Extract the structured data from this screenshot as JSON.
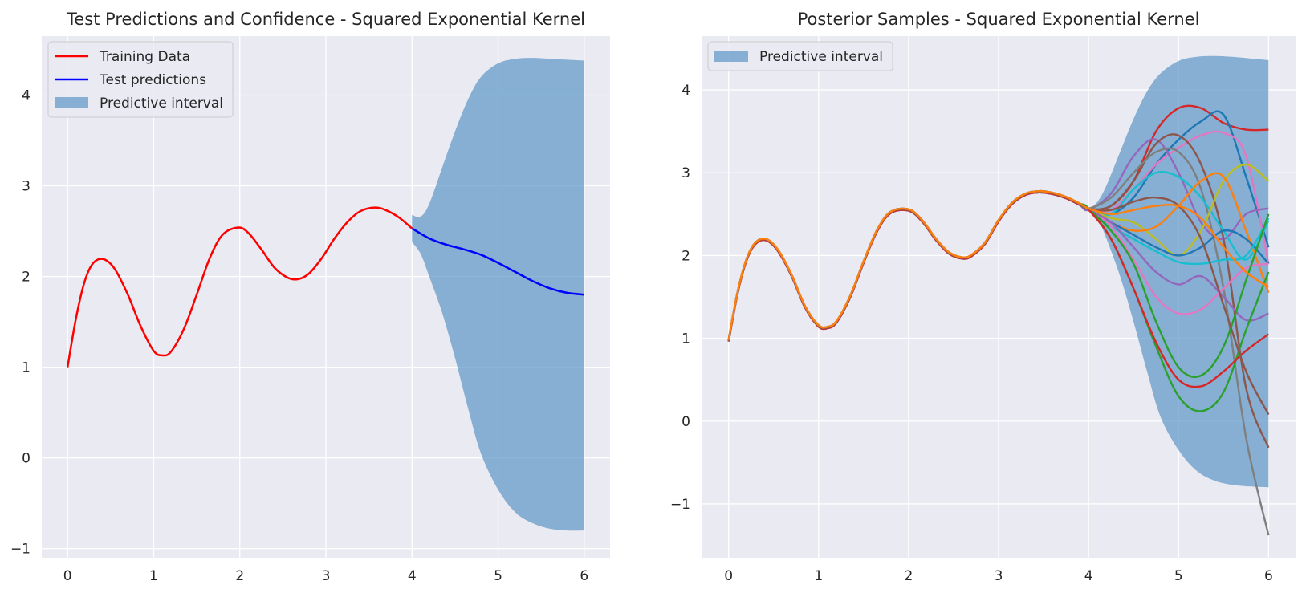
{
  "chart_data": [
    {
      "type": "line",
      "title": "Test Predictions and Confidence - Squared Exponential Kernel",
      "xlim": [
        -0.3,
        6.3
      ],
      "ylim": [
        -1.1,
        4.65
      ],
      "xticks": [
        0,
        1,
        2,
        3,
        4,
        5,
        6
      ],
      "yticks": [
        -1,
        0,
        1,
        2,
        3,
        4
      ],
      "grid": true,
      "legend_position": "top-left",
      "legend": [
        "Training Data",
        "Test predictions",
        "Predictive interval"
      ],
      "series": [
        {
          "name": "Training Data",
          "color": "#ff0000",
          "x": [
            0,
            0.1,
            0.2,
            0.3,
            0.42,
            0.55,
            0.7,
            0.85,
            1.0,
            1.1,
            1.2,
            1.35,
            1.5,
            1.65,
            1.8,
            1.98,
            2.1,
            2.25,
            2.4,
            2.55,
            2.67,
            2.8,
            2.95,
            3.1,
            3.25,
            3.4,
            3.57,
            3.7,
            3.85,
            4.0
          ],
          "y": [
            1.0,
            1.55,
            1.95,
            2.15,
            2.19,
            2.08,
            1.8,
            1.45,
            1.18,
            1.13,
            1.17,
            1.42,
            1.8,
            2.2,
            2.46,
            2.54,
            2.48,
            2.3,
            2.1,
            1.99,
            1.97,
            2.03,
            2.2,
            2.42,
            2.6,
            2.72,
            2.76,
            2.73,
            2.65,
            2.53
          ]
        },
        {
          "name": "Test predictions",
          "color": "#0000ff",
          "x": [
            4.0,
            4.2,
            4.4,
            4.6,
            4.8,
            5.0,
            5.2,
            5.4,
            5.6,
            5.8,
            6.0
          ],
          "y": [
            2.53,
            2.42,
            2.35,
            2.3,
            2.24,
            2.15,
            2.05,
            1.95,
            1.87,
            1.82,
            1.8
          ]
        }
      ],
      "interval": {
        "name": "Predictive interval",
        "color": "#5b95c6",
        "x": [
          4.0,
          4.1,
          4.2,
          4.35,
          4.5,
          4.65,
          4.8,
          5.0,
          5.2,
          5.4,
          5.6,
          5.8,
          6.0
        ],
        "lower": [
          2.38,
          2.25,
          2.0,
          1.6,
          1.1,
          0.55,
          0.05,
          -0.35,
          -0.6,
          -0.72,
          -0.78,
          -0.8,
          -0.8
        ],
        "upper": [
          2.68,
          2.66,
          2.8,
          3.2,
          3.6,
          3.95,
          4.2,
          4.35,
          4.4,
          4.41,
          4.4,
          4.39,
          4.38
        ]
      }
    },
    {
      "type": "line",
      "title": "Posterior Samples - Squared Exponential Kernel",
      "xlim": [
        -0.3,
        6.3
      ],
      "ylim": [
        -1.65,
        4.65
      ],
      "xticks": [
        0,
        1,
        2,
        3,
        4,
        5,
        6
      ],
      "yticks": [
        -1,
        0,
        1,
        2,
        3,
        4
      ],
      "grid": true,
      "legend_position": "top-left",
      "legend": [
        "Predictive interval"
      ],
      "common": {
        "x": [
          0,
          0.1,
          0.2,
          0.3,
          0.42,
          0.55,
          0.7,
          0.85,
          1.0,
          1.1,
          1.2,
          1.35,
          1.5,
          1.65,
          1.8,
          2.0,
          2.15,
          2.3,
          2.45,
          2.6,
          2.7,
          2.85,
          3.0,
          3.15,
          3.3,
          3.45,
          3.6,
          3.75,
          3.9,
          4.0
        ],
        "y": [
          0.97,
          1.55,
          1.95,
          2.15,
          2.19,
          2.06,
          1.76,
          1.38,
          1.15,
          1.13,
          1.2,
          1.5,
          1.92,
          2.3,
          2.52,
          2.55,
          2.42,
          2.2,
          2.03,
          1.97,
          2.0,
          2.15,
          2.42,
          2.63,
          2.74,
          2.77,
          2.75,
          2.7,
          2.62,
          2.56
        ]
      },
      "samples_x": [
        4.0,
        4.25,
        4.5,
        4.75,
        5.0,
        5.25,
        5.5,
        5.75,
        6.0
      ],
      "samples": [
        {
          "color": "#d62728",
          "y": [
            2.56,
            2.6,
            2.9,
            3.5,
            3.78,
            3.78,
            3.6,
            3.52,
            3.52
          ]
        },
        {
          "color": "#1f77b4",
          "y": [
            2.56,
            2.5,
            2.7,
            3.1,
            3.4,
            3.62,
            3.7,
            2.95,
            2.1
          ]
        },
        {
          "color": "#e377c2",
          "y": [
            2.56,
            2.55,
            2.8,
            3.1,
            3.3,
            3.45,
            3.48,
            3.2,
            1.9
          ]
        },
        {
          "color": "#9467bd",
          "y": [
            2.56,
            2.75,
            3.2,
            3.4,
            3.0,
            2.4,
            2.2,
            2.5,
            2.57
          ]
        },
        {
          "color": "#8c564b",
          "y": [
            2.56,
            2.6,
            2.9,
            3.35,
            3.45,
            3.1,
            2.2,
            0.4,
            -0.32
          ]
        },
        {
          "color": "#7f7f7f",
          "y": [
            2.56,
            2.7,
            3.0,
            3.25,
            3.25,
            2.8,
            1.6,
            -0.2,
            -1.38
          ]
        },
        {
          "color": "#17becf",
          "y": [
            2.56,
            2.5,
            2.8,
            3.0,
            2.95,
            2.7,
            2.3,
            1.95,
            2.42
          ]
        },
        {
          "color": "#bcbd22",
          "y": [
            2.56,
            2.45,
            2.4,
            2.2,
            2.0,
            2.3,
            2.9,
            3.1,
            2.9
          ]
        },
        {
          "color": "#ff7f0e",
          "y": [
            2.56,
            2.4,
            2.3,
            2.35,
            2.6,
            2.9,
            2.95,
            2.3,
            1.55
          ]
        },
        {
          "color": "#1f77b4",
          "y": [
            2.56,
            2.4,
            2.25,
            2.1,
            2.0,
            2.1,
            2.3,
            2.2,
            1.9
          ]
        },
        {
          "color": "#17becf",
          "y": [
            2.56,
            2.35,
            2.2,
            2.05,
            1.92,
            1.9,
            1.95,
            2.0,
            2.45
          ]
        },
        {
          "color": "#e377c2",
          "y": [
            2.56,
            2.35,
            1.95,
            1.5,
            1.3,
            1.35,
            1.6,
            1.85,
            1.9
          ]
        },
        {
          "color": "#9467bd",
          "y": [
            2.56,
            2.4,
            2.1,
            1.8,
            1.65,
            1.75,
            1.5,
            1.22,
            1.3
          ]
        },
        {
          "color": "#2ca02c",
          "y": [
            2.56,
            2.3,
            1.9,
            1.2,
            0.65,
            0.55,
            0.9,
            1.7,
            2.5
          ]
        },
        {
          "color": "#2ca02c",
          "y": [
            2.56,
            2.2,
            1.6,
            0.9,
            0.3,
            0.12,
            0.35,
            1.1,
            1.8
          ]
        },
        {
          "color": "#d62728",
          "y": [
            2.56,
            2.2,
            1.6,
            0.95,
            0.5,
            0.42,
            0.6,
            0.85,
            1.05
          ]
        },
        {
          "color": "#8c564b",
          "y": [
            2.56,
            2.55,
            2.65,
            2.7,
            2.6,
            2.2,
            1.4,
            0.6,
            0.08
          ]
        },
        {
          "color": "#ff7f0e",
          "y": [
            2.56,
            2.5,
            2.55,
            2.6,
            2.6,
            2.45,
            2.1,
            1.8,
            1.62
          ]
        }
      ],
      "interval": {
        "name": "Predictive interval",
        "color": "#5b95c6",
        "x": [
          4.0,
          4.1,
          4.2,
          4.35,
          4.5,
          4.65,
          4.8,
          5.0,
          5.2,
          5.4,
          5.6,
          5.8,
          6.0
        ],
        "lower": [
          2.56,
          2.45,
          2.2,
          1.75,
          1.2,
          0.6,
          0.05,
          -0.35,
          -0.6,
          -0.72,
          -0.77,
          -0.79,
          -0.8
        ],
        "upper": [
          2.56,
          2.65,
          2.85,
          3.25,
          3.65,
          3.98,
          4.2,
          4.35,
          4.4,
          4.41,
          4.4,
          4.38,
          4.36
        ]
      }
    }
  ]
}
